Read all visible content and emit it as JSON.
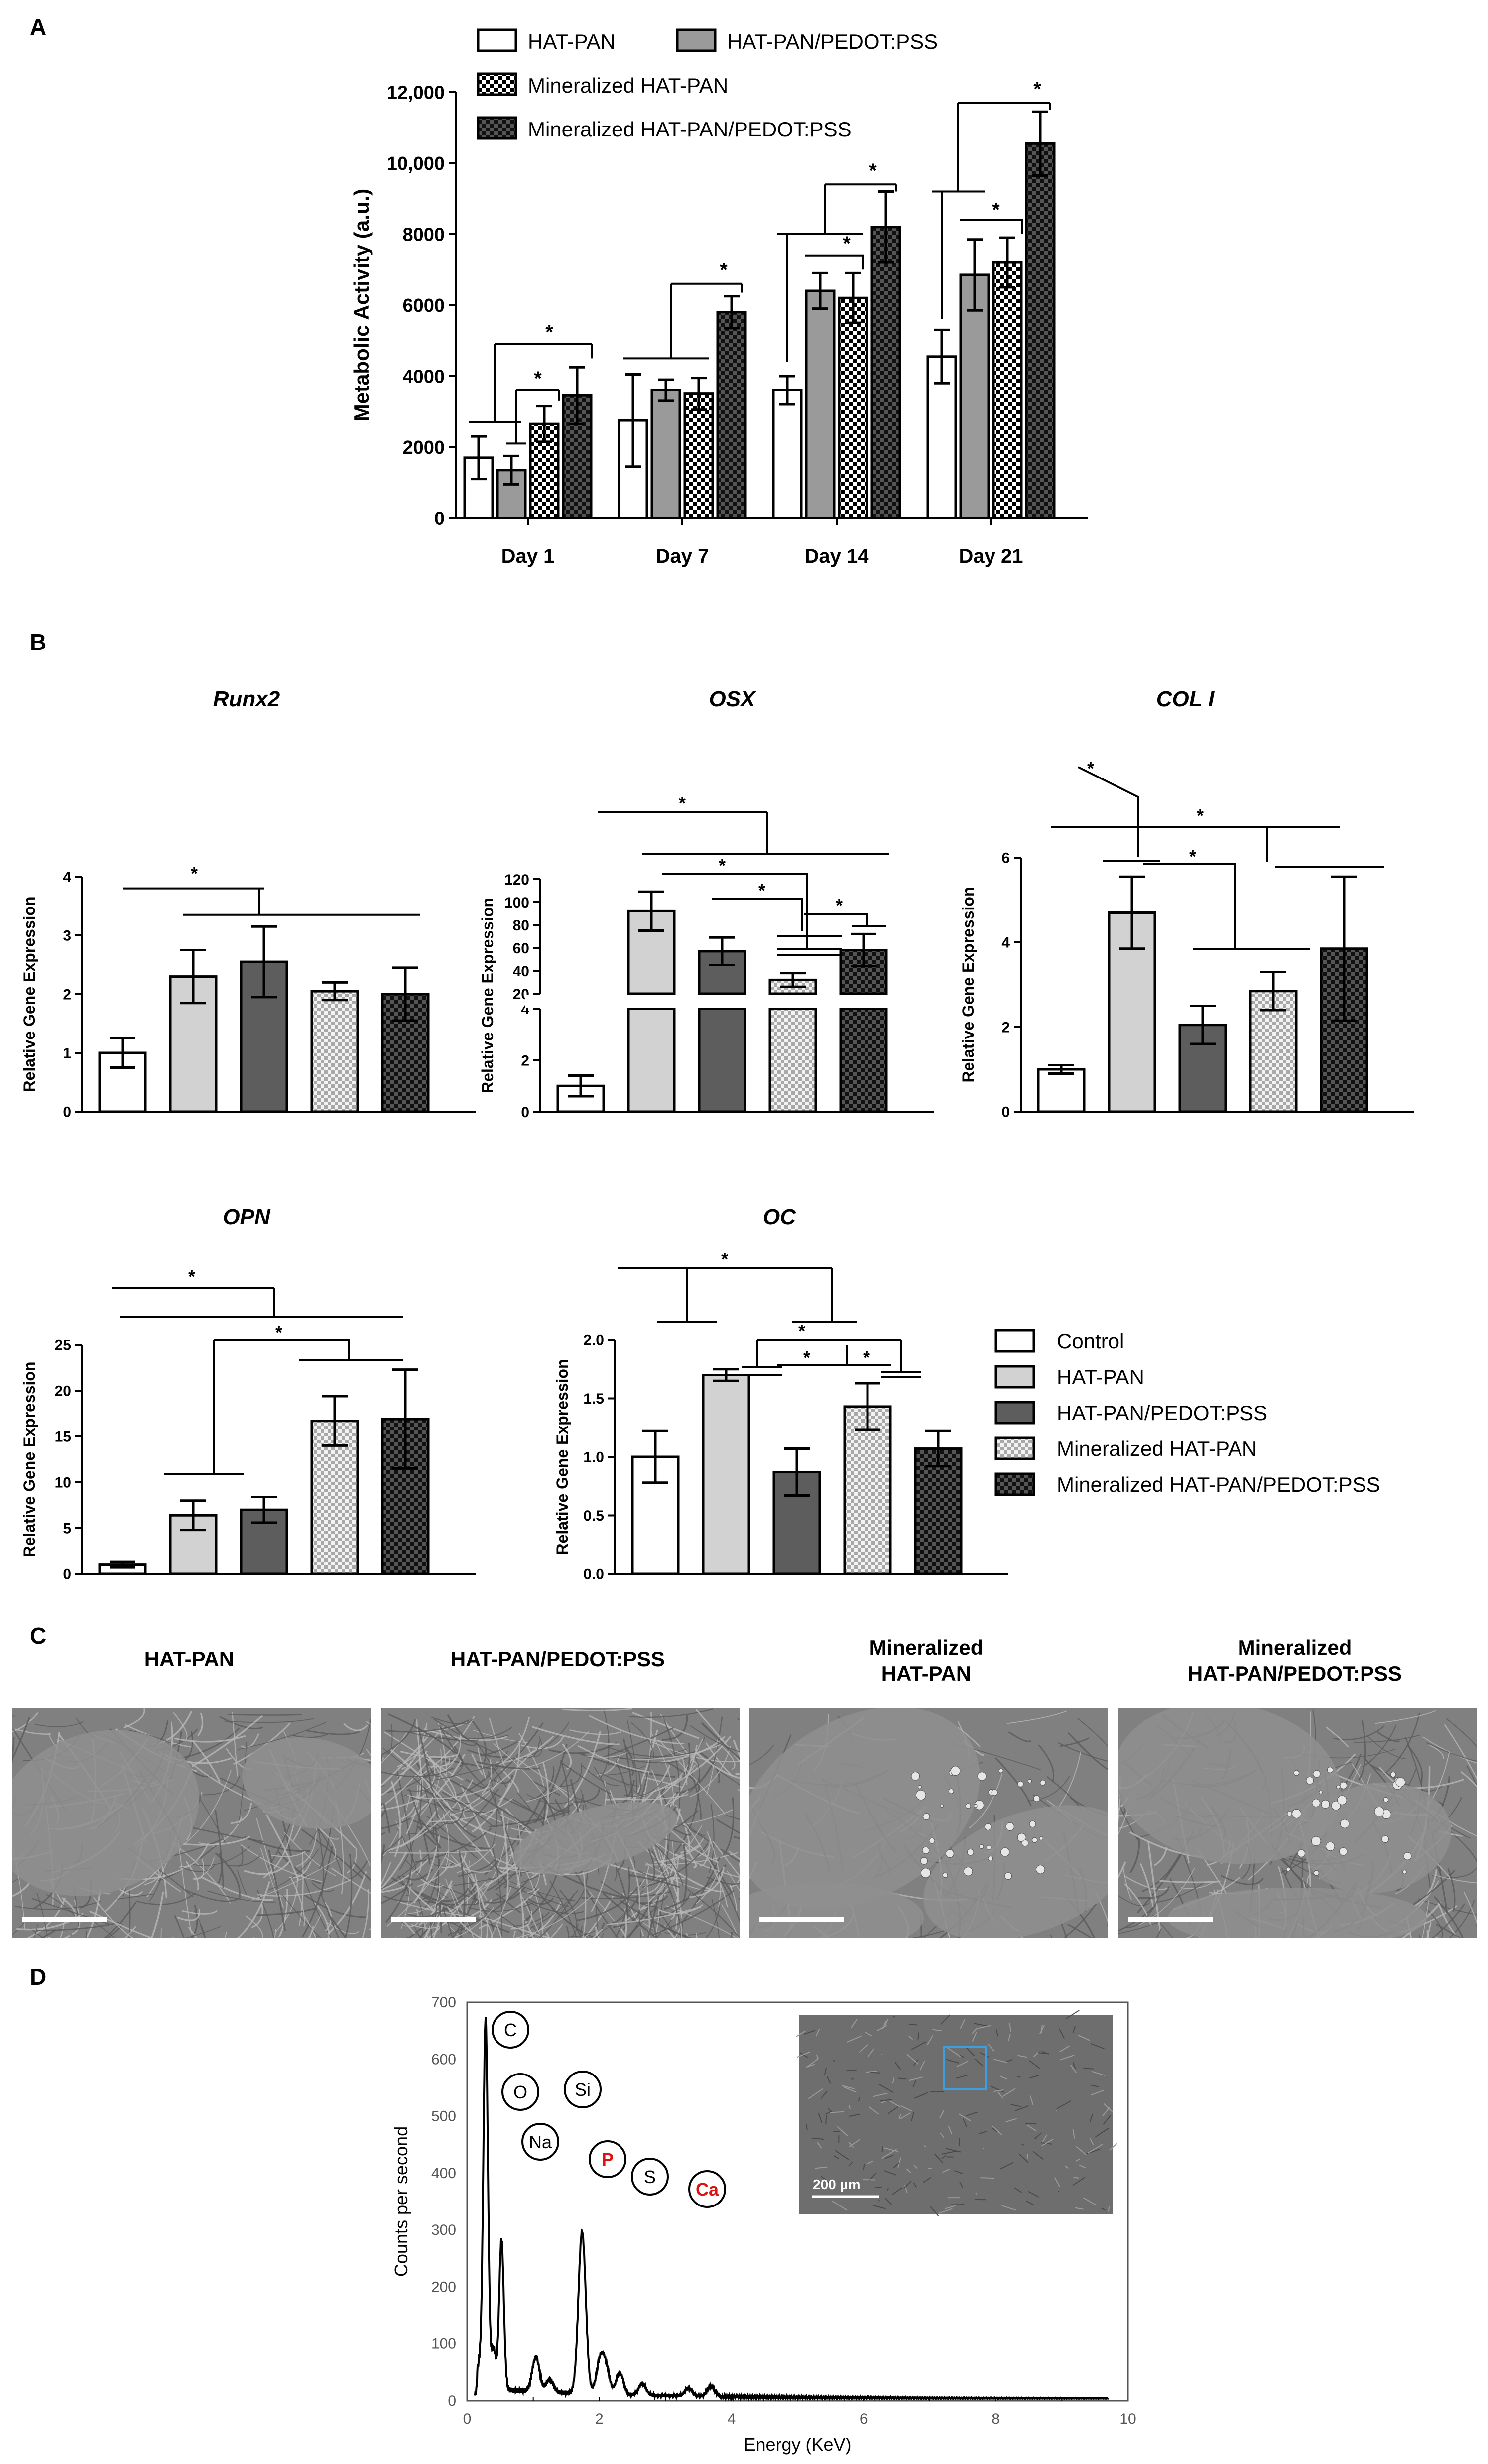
{
  "panel_labels": {
    "a": "A",
    "b": "B",
    "c": "C",
    "d": "D"
  },
  "colors": {
    "hat_pan": "#ffffff",
    "hat_pan_pedot": "#9a9a9a",
    "control": "#ffffff",
    "gene_hat_pan": "#d2d2d2",
    "gene_hat_pan_pedot": "#5d5d5d",
    "inset_box": "#3aa0e0",
    "highlight_element": "#e01010"
  },
  "chart_data": [
    {
      "id": "A",
      "type": "bar",
      "ylabel": "Metabolic Activity (a.u.)",
      "ylim": [
        0,
        12000
      ],
      "yticks": [
        "0",
        "2000",
        "4000",
        "6000",
        "8000",
        "10,000",
        "12,000"
      ],
      "categories": [
        "Day 1",
        "Day 7",
        "Day 14",
        "Day 21"
      ],
      "series": [
        {
          "name": "HAT-PAN",
          "values": [
            1700,
            2750,
            3600,
            4550
          ],
          "errors": [
            600,
            1300,
            400,
            750
          ]
        },
        {
          "name": "HAT-PAN/PEDOT:PSS",
          "values": [
            1350,
            3600,
            6400,
            6850
          ],
          "errors": [
            400,
            300,
            500,
            1000
          ]
        },
        {
          "name": "Mineralized HAT-PAN",
          "values": [
            2650,
            3500,
            6200,
            7200
          ],
          "errors": [
            500,
            450,
            700,
            700
          ]
        },
        {
          "name": "Mineralized HAT-PAN/PEDOT:PSS",
          "values": [
            3450,
            5800,
            8200,
            10550
          ],
          "errors": [
            800,
            450,
            1000,
            900
          ]
        }
      ],
      "significance": "*",
      "legend_placement": "top"
    },
    {
      "id": "Runx2",
      "type": "bar",
      "title": "Runx2",
      "ylabel": "Relative Gene Expression",
      "ylim": [
        0,
        4
      ],
      "yticks": [
        "0",
        "1",
        "2",
        "3",
        "4"
      ],
      "categories": [
        "Control",
        "HAT-PAN",
        "HAT-PAN/PEDOT:PSS",
        "Mineralized HAT-PAN",
        "Mineralized HAT-PAN/PEDOT:PSS"
      ],
      "values": [
        1.0,
        2.3,
        2.55,
        2.05,
        2.0
      ],
      "errors": [
        0.25,
        0.45,
        0.6,
        0.15,
        0.45
      ],
      "significance": "*"
    },
    {
      "id": "OSX",
      "type": "bar",
      "title": "OSX",
      "ylabel": "Relative Gene Expression",
      "broken_axis": true,
      "ylim_lower": [
        0,
        4
      ],
      "ylim_upper": [
        20,
        120
      ],
      "yticks_lower": [
        "0",
        "2",
        "4"
      ],
      "yticks_upper": [
        "20",
        "40",
        "60",
        "80",
        "100",
        "120"
      ],
      "categories": [
        "Control",
        "HAT-PAN",
        "HAT-PAN/PEDOT:PSS",
        "Mineralized HAT-PAN",
        "Mineralized HAT-PAN/PEDOT:PSS"
      ],
      "values": [
        1.0,
        92,
        57,
        32,
        58
      ],
      "errors": [
        0.4,
        17,
        12,
        6,
        14
      ],
      "significance": "*"
    },
    {
      "id": "COLI",
      "type": "bar",
      "title": "COL I",
      "ylabel": "Relative Gene Expression",
      "ylim": [
        0,
        6
      ],
      "yticks": [
        "0",
        "2",
        "4",
        "6"
      ],
      "categories": [
        "Control",
        "HAT-PAN",
        "HAT-PAN/PEDOT:PSS",
        "Mineralized HAT-PAN",
        "Mineralized HAT-PAN/PEDOT:PSS"
      ],
      "values": [
        1.0,
        4.7,
        2.05,
        2.85,
        3.85
      ],
      "errors": [
        0.1,
        0.85,
        0.45,
        0.45,
        1.7
      ],
      "significance": "*"
    },
    {
      "id": "OPN",
      "type": "bar",
      "title": "OPN",
      "ylabel": "Relative Gene Expression",
      "ylim": [
        0,
        25
      ],
      "yticks": [
        "0",
        "5",
        "10",
        "15",
        "20",
        "25"
      ],
      "categories": [
        "Control",
        "HAT-PAN",
        "HAT-PAN/PEDOT:PSS",
        "Mineralized HAT-PAN",
        "Mineralized HAT-PAN/PEDOT:PSS"
      ],
      "values": [
        1.0,
        6.4,
        7.0,
        16.7,
        16.9
      ],
      "errors": [
        0.3,
        1.6,
        1.4,
        2.7,
        5.4
      ],
      "significance": "*"
    },
    {
      "id": "OC",
      "type": "bar",
      "title": "OC",
      "ylabel": "Relative Gene Expression",
      "ylim": [
        0,
        2.0
      ],
      "yticks": [
        "0.0",
        "0.5",
        "1.0",
        "1.5",
        "2.0"
      ],
      "categories": [
        "Control",
        "HAT-PAN",
        "HAT-PAN/PEDOT:PSS",
        "Mineralized HAT-PAN",
        "Mineralized HAT-PAN/PEDOT:PSS"
      ],
      "values": [
        1.0,
        1.7,
        0.87,
        1.43,
        1.07
      ],
      "errors": [
        0.22,
        0.05,
        0.2,
        0.2,
        0.15
      ],
      "significance": "*"
    },
    {
      "id": "D",
      "type": "line",
      "xlabel": "Energy (KeV)",
      "ylabel": "Counts per second",
      "xlim": [
        0,
        10
      ],
      "ylim": [
        0,
        700
      ],
      "xticks": [
        "0",
        "2",
        "4",
        "6",
        "8",
        "10"
      ],
      "yticks": [
        "0",
        "100",
        "200",
        "300",
        "400",
        "500",
        "600",
        "700"
      ],
      "peaks": [
        {
          "x": 0.28,
          "y": 650,
          "label": "C"
        },
        {
          "x": 0.52,
          "y": 265,
          "label": "O"
        },
        {
          "x": 1.04,
          "y": 60,
          "label": "Na"
        },
        {
          "x": 1.74,
          "y": 285,
          "label": "Si"
        },
        {
          "x": 2.01,
          "y": 55,
          "label": "P",
          "highlight": true
        },
        {
          "x": 2.31,
          "y": 38,
          "label": "S"
        },
        {
          "x": 3.69,
          "y": 18,
          "label": "Ca",
          "highlight": true
        }
      ]
    }
  ],
  "legend_b": [
    "Control",
    "HAT-PAN",
    "HAT-PAN/PEDOT:PSS",
    "Mineralized HAT-PAN",
    "Mineralized HAT-PAN/PEDOT:PSS"
  ],
  "sem_titles": [
    [
      "HAT-PAN"
    ],
    [
      "HAT-PAN/PEDOT:PSS"
    ],
    [
      "Mineralized",
      "HAT-PAN"
    ],
    [
      "Mineralized",
      "HAT-PAN/PEDOT:PSS"
    ]
  ],
  "inset_scale": "200 µm"
}
